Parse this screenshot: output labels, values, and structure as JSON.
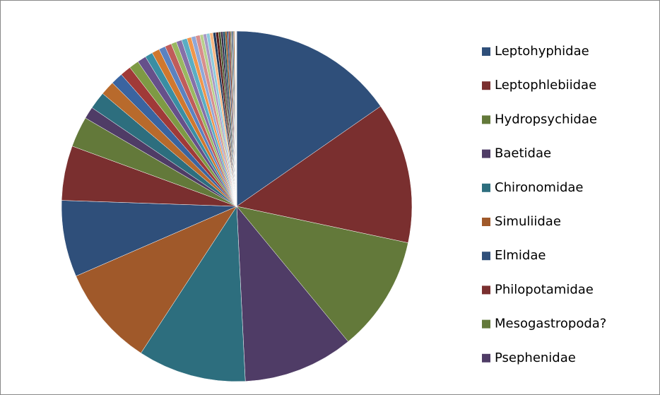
{
  "chart_data": {
    "type": "pie",
    "categories": [
      "Leptohyphidae",
      "Leptophlebiidae",
      "Hydropsychidae",
      "Baetidae",
      "Chironomidae",
      "Simuliidae",
      "Elmidae",
      "Philopotamidae",
      "Mesogastropoda?",
      "Psephenidae",
      null,
      null,
      null,
      null,
      null,
      null,
      null,
      null,
      null,
      null,
      null,
      null,
      null,
      null,
      null,
      null,
      null,
      null,
      null,
      null,
      null,
      null,
      null,
      null,
      null,
      null,
      null,
      null,
      null,
      null,
      null,
      null,
      null,
      null,
      null,
      null
    ],
    "values": [
      15.2,
      12.9,
      10.6,
      10.1,
      9.9,
      9.2,
      7.0,
      5.0,
      2.8,
      1.1,
      1.6,
      1.3,
      1.1,
      1.0,
      0.9,
      0.8,
      0.7,
      0.7,
      0.6,
      0.6,
      0.5,
      0.5,
      0.5,
      0.4,
      0.4,
      0.4,
      0.3,
      0.3,
      0.3,
      0.3,
      0.25,
      0.25,
      0.2,
      0.2,
      0.2,
      0.15,
      0.15,
      0.15,
      0.1,
      0.1,
      0.1,
      0.1,
      0.05,
      0.05,
      0.05,
      0.05
    ],
    "colors": [
      "#2f4f7a",
      "#7a2f2f",
      "#63793a",
      "#4f3c66",
      "#2d6e7e",
      "#a0592a",
      "#2f4f7a",
      "#7a2f2f",
      "#63793a",
      "#4f3c66",
      "#2d6e7e",
      "#b86a2c",
      "#3a64a0",
      "#a03a38",
      "#7e9a44",
      "#66508a",
      "#3a8ea3",
      "#d0782e",
      "#5b82c0",
      "#c05c5a",
      "#9ab860",
      "#8670a8",
      "#5aaec4",
      "#f0964c",
      "#8fa8d8",
      "#d88e8c",
      "#b8d08c",
      "#a898c4",
      "#8ccadc",
      "#f8b884",
      "#1f3a5c",
      "#5c1f1e",
      "#46582a",
      "#3a2b4a",
      "#1d5060",
      "#8a4206",
      "#2f4f7a",
      "#7a2f2f",
      "#63793a",
      "#4f3c66",
      "#2d6e7e",
      "#a0592a",
      "#bfbfbf",
      "#d0d0d0",
      "#e0e0e0",
      "#c8c8c8"
    ]
  }
}
